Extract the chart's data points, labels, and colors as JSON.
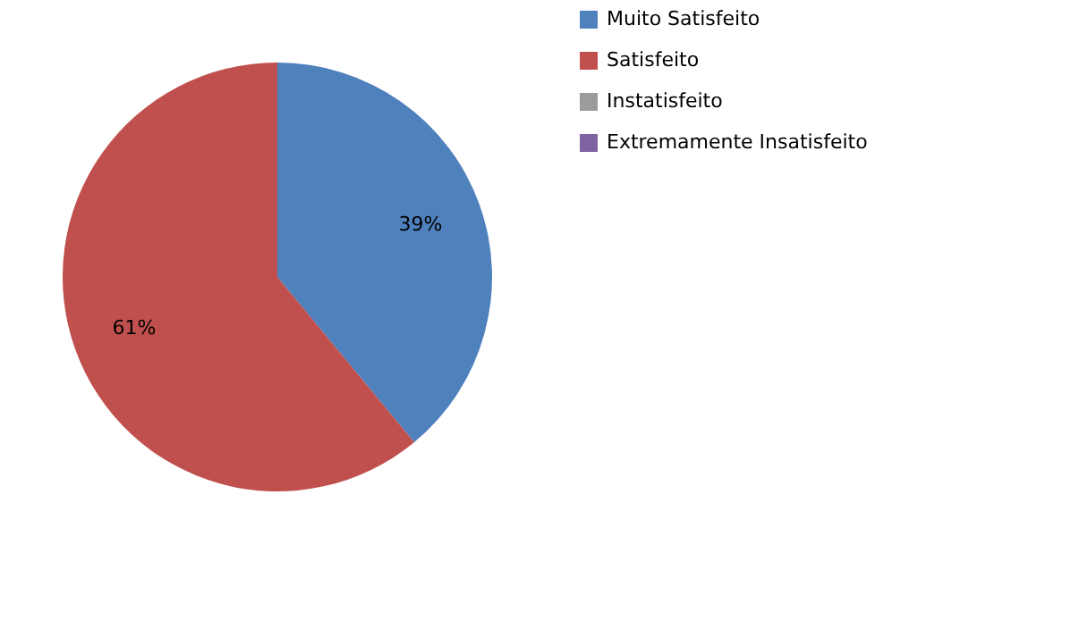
{
  "chart_data": {
    "type": "pie",
    "categories": [
      "Muito Satisfeito",
      "Satisfeito",
      "Instatisfeito",
      "Extremamente Insatisfeito"
    ],
    "values": [
      39,
      61,
      0,
      0
    ],
    "colors": [
      "#4f81bd",
      "#c0504d",
      "#9b9b9b",
      "#8064a2"
    ],
    "value_labels": [
      "39%",
      "61%",
      null,
      null
    ],
    "legend": "right"
  }
}
